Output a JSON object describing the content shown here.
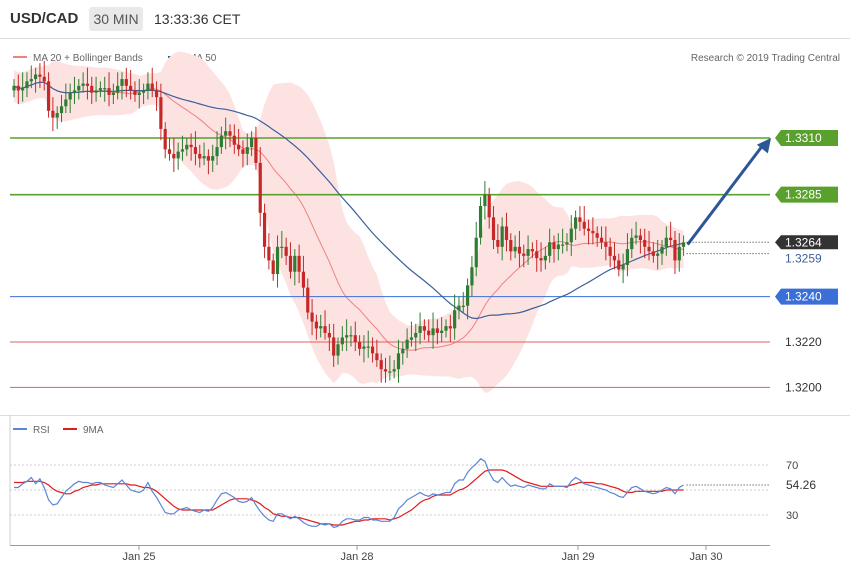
{
  "header": {
    "symbol": "USD/CAD",
    "interval": "30 MIN",
    "time": "13:33:36 CET"
  },
  "copyright": "Research © 2019 Trading Central",
  "price_legend": {
    "bollinger": "MA 20 + Bollinger Bands",
    "ma50": "MA 50"
  },
  "rsi_legend": {
    "rsi": "RSI",
    "ma9": "9MA"
  },
  "colors": {
    "up": "#2e7d32",
    "down": "#c62828",
    "bollinger_line": "#f08080",
    "bollinger_fill": "#fde2e2",
    "ma50": "#3c5f9a",
    "level_green": "#5aa02c",
    "level_blue": "#3a6fd8",
    "level_red": "#e06060",
    "arrow": "#2b5797",
    "rsi": "#5b86d6",
    "rsi_ma": "#e21b1b"
  },
  "chart_data": [
    {
      "type": "candlestick",
      "title": "USD/CAD 30 MIN",
      "x_tick_labels": [
        "Jan 25",
        "Jan 28",
        "Jan 29",
        "Jan 30"
      ],
      "y_range": [
        1.319,
        1.334
      ],
      "levels": [
        {
          "value": 1.331,
          "label": "1.3310",
          "color": "green"
        },
        {
          "value": 1.3285,
          "label": "1.3285",
          "color": "green"
        },
        {
          "value": 1.324,
          "label": "1.3240",
          "color": "blue"
        },
        {
          "value": 1.322,
          "label": "1.3220",
          "color": "red"
        },
        {
          "value": 1.32,
          "label": "1.3200",
          "color": "red"
        }
      ],
      "last_price": {
        "value": 1.3264,
        "label": "1.3264"
      },
      "ma50_value": {
        "value": 1.3259,
        "label": "1.3259"
      },
      "forecast_arrow": {
        "from": 1.3263,
        "to": 1.331
      },
      "close": [
        1.3333,
        1.3331,
        1.3332,
        1.3335,
        1.3336,
        1.3338,
        1.3337,
        1.3335,
        1.3322,
        1.3319,
        1.3321,
        1.3324,
        1.3327,
        1.333,
        1.3331,
        1.3333,
        1.3334,
        1.3333,
        1.333,
        1.3331,
        1.3332,
        1.3332,
        1.3329,
        1.333,
        1.3333,
        1.3336,
        1.3333,
        1.3331,
        1.3329,
        1.333,
        1.3331,
        1.3334,
        1.3331,
        1.3328,
        1.3314,
        1.3305,
        1.3303,
        1.3301,
        1.3304,
        1.3305,
        1.3307,
        1.3306,
        1.3303,
        1.3301,
        1.3302,
        1.33,
        1.3302,
        1.3306,
        1.3311,
        1.3313,
        1.3311,
        1.3307,
        1.3305,
        1.3303,
        1.3306,
        1.331,
        1.3299,
        1.3277,
        1.3262,
        1.3256,
        1.325,
        1.3262,
        1.3262,
        1.3258,
        1.3251,
        1.3258,
        1.3251,
        1.3244,
        1.3233,
        1.3229,
        1.3226,
        1.3227,
        1.3224,
        1.3222,
        1.3214,
        1.3219,
        1.3222,
        1.3223,
        1.3223,
        1.322,
        1.3217,
        1.3218,
        1.3218,
        1.3215,
        1.3212,
        1.3208,
        1.3207,
        1.3207,
        1.3208,
        1.3215,
        1.3217,
        1.3221,
        1.3222,
        1.3224,
        1.3227,
        1.3225,
        1.3223,
        1.3226,
        1.3224,
        1.3225,
        1.3227,
        1.3226,
        1.3234,
        1.3236,
        1.3236,
        1.3245,
        1.3253,
        1.3266,
        1.328,
        1.3285,
        1.3275,
        1.3265,
        1.3262,
        1.3271,
        1.3265,
        1.326,
        1.3262,
        1.3259,
        1.3258,
        1.3261,
        1.326,
        1.3257,
        1.3256,
        1.3258,
        1.3264,
        1.3261,
        1.3263,
        1.3263,
        1.3264,
        1.327,
        1.3275,
        1.3273,
        1.327,
        1.3269,
        1.3268,
        1.3266,
        1.3264,
        1.3262,
        1.3258,
        1.3256,
        1.3252,
        1.3254,
        1.3261,
        1.3266,
        1.3267,
        1.3265,
        1.3262,
        1.326,
        1.3258,
        1.3259,
        1.3262,
        1.3266,
        1.3265,
        1.3256,
        1.3262,
        1.3264
      ],
      "rsi": {
        "y_range": [
          10,
          90
        ],
        "levels": [
          70,
          50,
          30
        ],
        "last_label": "54.26",
        "values": [
          52,
          52,
          55,
          57,
          60,
          55,
          59,
          52,
          42,
          38,
          39,
          44,
          49,
          52,
          55,
          57,
          56,
          56,
          55,
          56,
          56,
          54,
          53,
          52,
          55,
          58,
          54,
          50,
          49,
          48,
          50,
          56,
          49,
          44,
          38,
          32,
          31,
          31,
          34,
          35,
          36,
          34,
          33,
          32,
          34,
          33,
          36,
          42,
          47,
          48,
          46,
          44,
          41,
          40,
          41,
          44,
          38,
          33,
          29,
          26,
          25,
          31,
          31,
          29,
          27,
          29,
          27,
          24,
          22,
          21,
          21,
          23,
          22,
          23,
          20,
          21,
          25,
          27,
          27,
          26,
          26,
          28,
          28,
          26,
          26,
          25,
          25,
          25,
          28,
          35,
          38,
          42,
          44,
          46,
          48,
          46,
          45,
          47,
          46,
          47,
          48,
          48,
          55,
          58,
          58,
          64,
          68,
          71,
          75,
          73,
          64,
          58,
          56,
          60,
          56,
          53,
          54,
          53,
          52,
          54,
          53,
          52,
          51,
          51,
          55,
          53,
          53,
          53,
          52,
          57,
          60,
          58,
          55,
          54,
          53,
          52,
          51,
          50,
          48,
          47,
          45,
          44,
          48,
          52,
          53,
          51,
          49,
          48,
          47,
          48,
          50,
          52,
          51,
          47,
          52,
          54
        ]
      },
      "rsi_ma": [
        56,
        56,
        56,
        57,
        57,
        57,
        57,
        56,
        54,
        51,
        49,
        48,
        47,
        47,
        49,
        50,
        52,
        53,
        54,
        54,
        55,
        55,
        55,
        55,
        55,
        55,
        55,
        54,
        54,
        53,
        52,
        52,
        51,
        49,
        46,
        43,
        40,
        37,
        35,
        34,
        34,
        34,
        34,
        34,
        34,
        34,
        34,
        36,
        38,
        40,
        42,
        43,
        43,
        43,
        43,
        42,
        41,
        39,
        36,
        34,
        31,
        30,
        29,
        29,
        28,
        28,
        28,
        27,
        26,
        25,
        24,
        23,
        23,
        23,
        22,
        22,
        22,
        23,
        24,
        25,
        25,
        26,
        26,
        27,
        27,
        27,
        27,
        26,
        27,
        28,
        30,
        32,
        34,
        37,
        40,
        42,
        43,
        45,
        46,
        46,
        46,
        46,
        48,
        50,
        51,
        53,
        56,
        59,
        62,
        65,
        66,
        66,
        66,
        66,
        65,
        63,
        61,
        59,
        57,
        56,
        55,
        54,
        53,
        53,
        53,
        53,
        53,
        53,
        53,
        54,
        55,
        56,
        56,
        56,
        56,
        55,
        55,
        54,
        53,
        52,
        51,
        49,
        48,
        48,
        49,
        49,
        49,
        49,
        49,
        49,
        49,
        50,
        50,
        50,
        50,
        50
      ]
    }
  ]
}
